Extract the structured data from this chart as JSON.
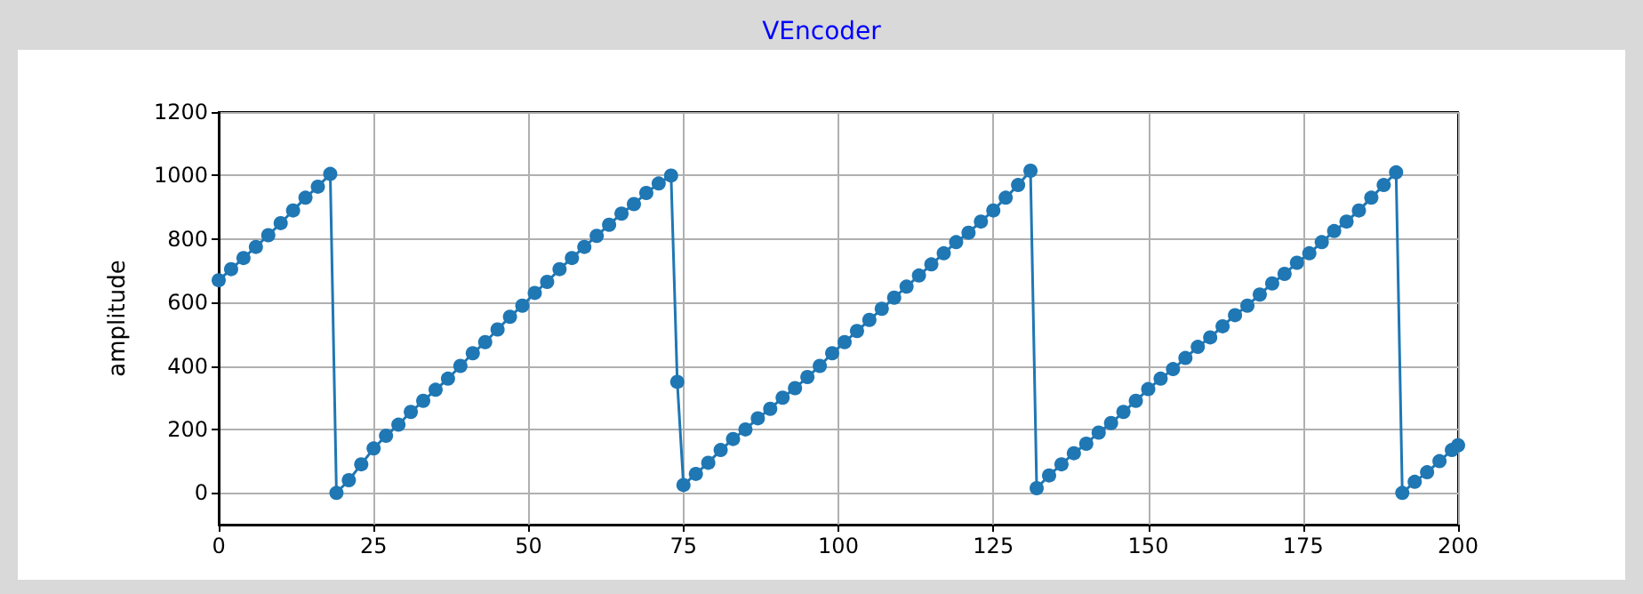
{
  "chart_data": {
    "type": "line",
    "title": "VEncoder",
    "ylabel": "amplitude",
    "xlim": [
      0,
      200
    ],
    "xticks": [
      0,
      25,
      50,
      75,
      100,
      125,
      150,
      175,
      200
    ],
    "ylim": [
      -100,
      1200
    ],
    "yticks": [
      0,
      200,
      400,
      600,
      800,
      1000,
      1200
    ],
    "grid": true,
    "marker": "circle",
    "line_style": "solid",
    "series": [
      {
        "color": "#1f77b4",
        "x": [
          0,
          2,
          4,
          6,
          8,
          10,
          12,
          14,
          16,
          18,
          19,
          21,
          23,
          25,
          27,
          29,
          31,
          33,
          35,
          37,
          39,
          41,
          43,
          45,
          47,
          49,
          51,
          53,
          55,
          57,
          59,
          61,
          63,
          65,
          67,
          69,
          71,
          73,
          74,
          75,
          77,
          79,
          81,
          83,
          85,
          87,
          89,
          91,
          93,
          95,
          97,
          99,
          101,
          103,
          105,
          107,
          109,
          111,
          113,
          115,
          117,
          119,
          121,
          123,
          125,
          127,
          129,
          131,
          132,
          134,
          136,
          138,
          140,
          142,
          144,
          146,
          148,
          150,
          152,
          154,
          156,
          158,
          160,
          162,
          164,
          166,
          168,
          170,
          172,
          174,
          176,
          178,
          180,
          182,
          184,
          186,
          188,
          190,
          191,
          193,
          195,
          197,
          199,
          200
        ],
        "values": [
          670,
          705,
          740,
          775,
          812,
          850,
          890,
          930,
          965,
          1005,
          0,
          40,
          90,
          140,
          180,
          215,
          255,
          290,
          325,
          360,
          400,
          440,
          475,
          515,
          555,
          590,
          630,
          665,
          705,
          740,
          775,
          810,
          845,
          880,
          910,
          945,
          975,
          1000,
          350,
          25,
          60,
          95,
          135,
          170,
          200,
          235,
          265,
          300,
          330,
          365,
          400,
          440,
          475,
          510,
          545,
          580,
          615,
          650,
          685,
          720,
          755,
          790,
          820,
          855,
          890,
          930,
          970,
          1015,
          15,
          55,
          90,
          125,
          155,
          190,
          220,
          255,
          290,
          327,
          360,
          390,
          425,
          460,
          490,
          525,
          560,
          590,
          625,
          660,
          690,
          725,
          755,
          790,
          825,
          855,
          890,
          930,
          970,
          1010,
          0,
          35,
          65,
          100,
          135,
          150
        ]
      }
    ]
  }
}
